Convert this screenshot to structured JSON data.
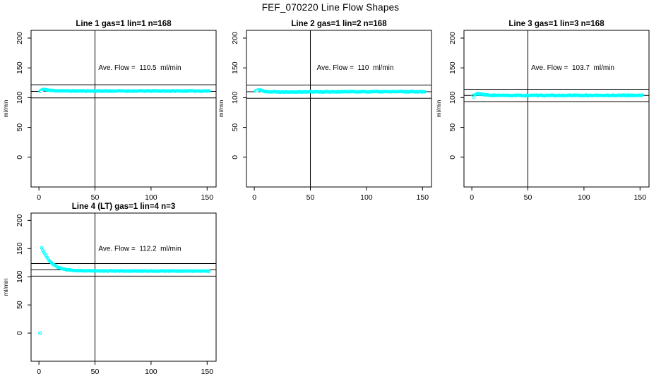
{
  "header": {
    "title": "FEF_070220  Line Flow Shapes"
  },
  "colors": {
    "background": "#FFFFFF",
    "axis": "#000000",
    "points": "#00FFFF",
    "marker_plus": "#FFFFFF"
  },
  "chart_data": [
    {
      "type": "scatter",
      "title": "Line 1 gas=1 lin=1 n=168",
      "annotation": "Ave. Flow =  110.5  ml/min",
      "ave_flow_value": 110.5,
      "n_label": 168,
      "ylabel": "ml/min",
      "xticks": [
        0,
        50,
        100,
        150
      ],
      "yticks": [
        0,
        50,
        100,
        150,
        200
      ],
      "xlim": [
        -7,
        158
      ],
      "ylim": [
        -50,
        213
      ],
      "grid": false,
      "vline_x": 50,
      "hlines": [
        121.6,
        110.5,
        99.5
      ],
      "marker": "open-circle",
      "point_color": "#00FFFF",
      "n_points": 168,
      "x_range": [
        1,
        152
      ],
      "profile_anchors": [
        [
          1,
          110.5
        ],
        [
          2,
          112.5
        ],
        [
          4,
          113.8
        ],
        [
          6,
          113.5
        ],
        [
          9,
          112.3
        ],
        [
          14,
          111.6
        ],
        [
          25,
          111.2
        ],
        [
          60,
          111.1
        ],
        [
          152,
          111.2
        ]
      ],
      "jitter": 0.55,
      "seed": 11,
      "extra_points": [],
      "plus_marker": [
        2.5,
        110.5
      ],
      "annotation_pos": [
        90,
        150
      ]
    },
    {
      "type": "scatter",
      "title": "Line 2 gas=1 lin=2 n=168",
      "annotation": "Ave. Flow =  110  ml/min",
      "ave_flow_value": 110,
      "n_label": 168,
      "ylabel": "ml/min",
      "xticks": [
        0,
        50,
        100,
        150
      ],
      "yticks": [
        0,
        50,
        100,
        150,
        200
      ],
      "xlim": [
        -7,
        158
      ],
      "ylim": [
        -50,
        213
      ],
      "grid": false,
      "vline_x": 50,
      "hlines": [
        121.0,
        110.0,
        99.0
      ],
      "marker": "open-circle",
      "point_color": "#00FFFF",
      "n_points": 168,
      "x_range": [
        1,
        152
      ],
      "profile_anchors": [
        [
          1,
          111
        ],
        [
          3,
          113.2
        ],
        [
          5,
          112.8
        ],
        [
          8,
          111
        ],
        [
          13,
          109.8
        ],
        [
          25,
          109.6
        ],
        [
          80,
          109.9
        ],
        [
          152,
          110
        ]
      ],
      "jitter": 0.55,
      "seed": 22,
      "extra_points": [],
      "plus_marker": [
        2.5,
        111
      ],
      "annotation_pos": [
        90,
        150
      ]
    },
    {
      "type": "scatter",
      "title": "Line 3 gas=1 lin=3 n=168",
      "annotation": "Ave. Flow =  103.7  ml/min",
      "ave_flow_value": 103.7,
      "n_label": 168,
      "ylabel": "ml/min",
      "xticks": [
        0,
        50,
        100,
        150
      ],
      "yticks": [
        0,
        50,
        100,
        150,
        200
      ],
      "xlim": [
        -7,
        158
      ],
      "ylim": [
        -50,
        213
      ],
      "grid": false,
      "vline_x": 50,
      "hlines": [
        114.1,
        103.7,
        93.3
      ],
      "marker": "open-circle",
      "point_color": "#00FFFF",
      "n_points": 168,
      "x_range": [
        1,
        152
      ],
      "profile_anchors": [
        [
          1,
          104
        ],
        [
          2,
          99.5
        ],
        [
          3,
          105.5
        ],
        [
          5,
          106.8
        ],
        [
          8,
          105.8
        ],
        [
          13,
          104.3
        ],
        [
          25,
          103.6
        ],
        [
          80,
          103.6
        ],
        [
          152,
          103.8
        ]
      ],
      "jitter": 0.65,
      "seed": 33,
      "extra_points": [],
      "plus_marker": [
        2,
        100
      ],
      "annotation_pos": [
        90,
        150
      ]
    },
    {
      "type": "scatter",
      "title": "Line 4 (LT) gas=1 lin=4 n=3",
      "annotation": "Ave. Flow =  112.2  ml/min",
      "ave_flow_value": 112.2,
      "n_label": 3,
      "ylabel": "ml/min",
      "xticks": [
        0,
        50,
        100,
        150
      ],
      "yticks": [
        0,
        50,
        100,
        150,
        200
      ],
      "xlim": [
        -7,
        158
      ],
      "ylim": [
        -50,
        213
      ],
      "grid": false,
      "vline_x": 50,
      "hlines": [
        123.4,
        112.2,
        101.0
      ],
      "marker": "open-circle",
      "point_color": "#00FFFF",
      "n_points": 158,
      "x_range": [
        2.5,
        151.5
      ],
      "profile_anchors": [
        [
          2.5,
          151
        ],
        [
          4,
          145
        ],
        [
          6,
          138
        ],
        [
          9,
          129
        ],
        [
          12,
          123
        ],
        [
          16,
          117.5
        ],
        [
          20,
          114.5
        ],
        [
          25,
          112.3
        ],
        [
          32,
          111
        ],
        [
          45,
          110.4
        ],
        [
          70,
          110.2
        ],
        [
          151.5,
          110
        ]
      ],
      "jitter": 0.45,
      "seed": 44,
      "extra_points": [
        [
          1,
          0
        ]
      ],
      "plus_marker": null,
      "annotation_pos": [
        90,
        150
      ]
    }
  ]
}
